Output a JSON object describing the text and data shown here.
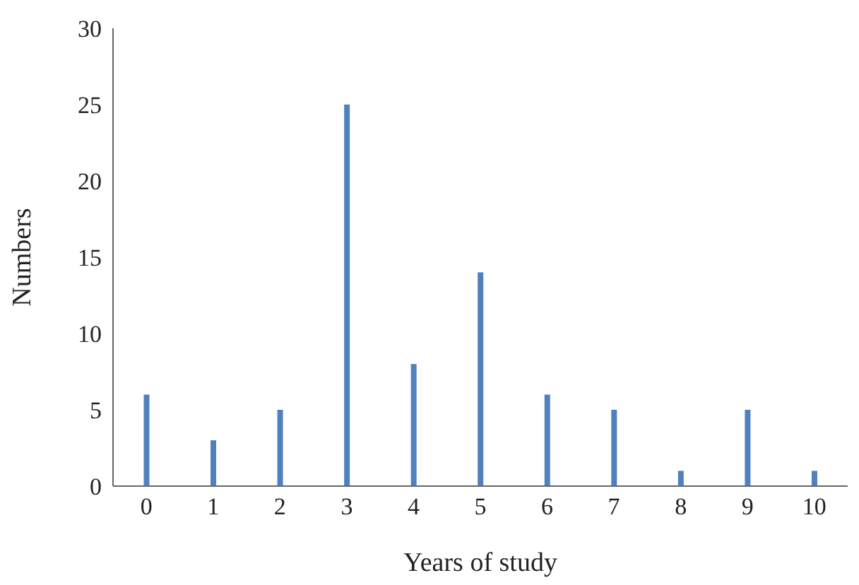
{
  "chart_data": {
    "type": "bar",
    "xlabel": "Years of study",
    "ylabel": "Numbers",
    "categories": [
      "0",
      "1",
      "2",
      "3",
      "4",
      "5",
      "6",
      "7",
      "8",
      "9",
      "10"
    ],
    "values": [
      6,
      3,
      5,
      25,
      8,
      14,
      6,
      5,
      1,
      5,
      1
    ],
    "color": "#4f81bd",
    "ylim": [
      0,
      30
    ],
    "yticks": [
      0,
      5,
      10,
      15,
      20,
      25,
      30
    ],
    "grid": false,
    "legend": false
  }
}
